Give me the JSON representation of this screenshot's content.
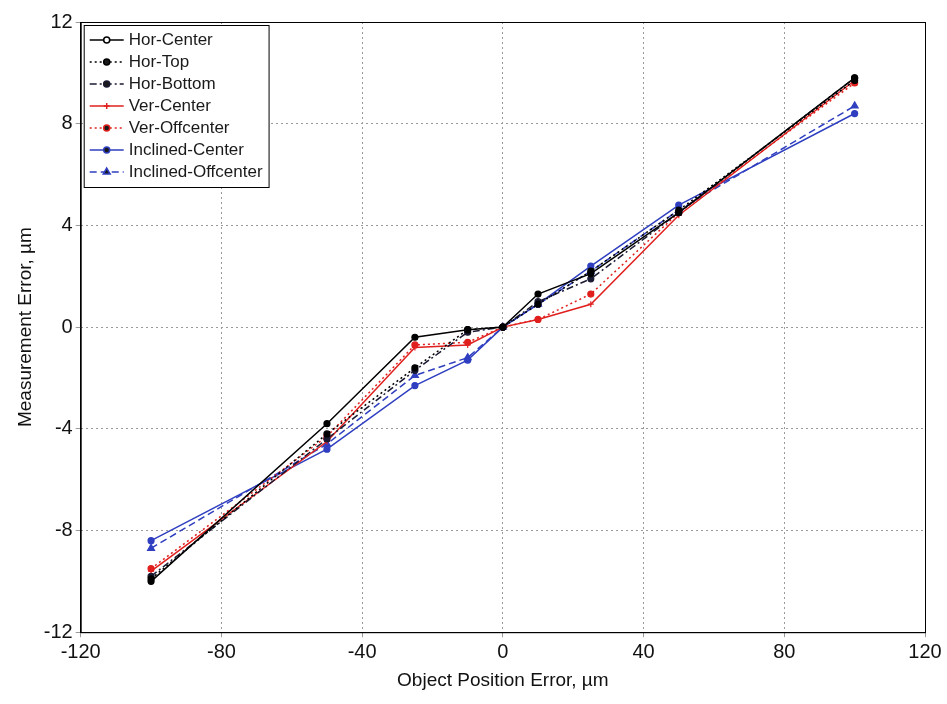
{
  "chart_data": {
    "type": "line",
    "x_label": "Object Position Error, µm",
    "y_label": "Measurement Error, µm",
    "x": [
      -100,
      -50,
      -25,
      -10,
      0,
      10,
      25,
      50,
      100
    ],
    "series": [
      {
        "name": "Hor-Center",
        "color": "#000000",
        "line_style": "solid",
        "marker": "circle",
        "values": [
          -10.0,
          -3.8,
          -0.4,
          -0.1,
          0,
          1.3,
          2.1,
          4.5,
          9.8
        ]
      },
      {
        "name": "Hor-Top",
        "color": "#000000",
        "line_style": "dotted",
        "marker": "circle",
        "values": [
          -9.9,
          -4.2,
          -1.6,
          -0.1,
          0,
          0.9,
          2.2,
          4.6,
          9.7
        ]
      },
      {
        "name": "Hor-Bottom",
        "color": "#1a1a33",
        "line_style": "dashdot",
        "marker": "circle",
        "values": [
          -9.8,
          -4.4,
          -1.7,
          -0.2,
          0,
          1.0,
          1.9,
          4.5,
          9.8
        ]
      },
      {
        "name": "Ver-Center",
        "color": "#e0201e",
        "line_style": "solid",
        "marker": "plus",
        "values": [
          -9.6,
          -4.5,
          -0.8,
          -0.7,
          0,
          0.3,
          0.9,
          4.4,
          9.7
        ]
      },
      {
        "name": "Ver-Offcenter",
        "color": "#e0201e",
        "line_style": "dotted",
        "marker": "circle",
        "values": [
          -9.5,
          -4.3,
          -0.7,
          -0.6,
          0,
          0.3,
          1.3,
          4.5,
          9.6
        ]
      },
      {
        "name": "Inclined-Center",
        "color": "#2f3fc0",
        "line_style": "solid",
        "marker": "circle",
        "values": [
          -8.4,
          -4.8,
          -2.3,
          -1.3,
          0,
          0.9,
          2.4,
          4.8,
          8.4
        ]
      },
      {
        "name": "Inclined-Offcenter",
        "color": "#2f3fc0",
        "line_style": "dashed",
        "marker": "triangle",
        "values": [
          -8.7,
          -4.6,
          -1.9,
          -1.2,
          0,
          0.9,
          2.2,
          4.6,
          8.7
        ]
      }
    ],
    "xlim": [
      -120,
      120
    ],
    "xticks": [
      -120,
      -80,
      -40,
      0,
      40,
      80,
      120
    ],
    "ylim": [
      -12,
      12
    ],
    "yticks": [
      -12,
      -8,
      -4,
      0,
      4,
      8,
      12
    ],
    "grid": true,
    "legend": "upper left"
  }
}
